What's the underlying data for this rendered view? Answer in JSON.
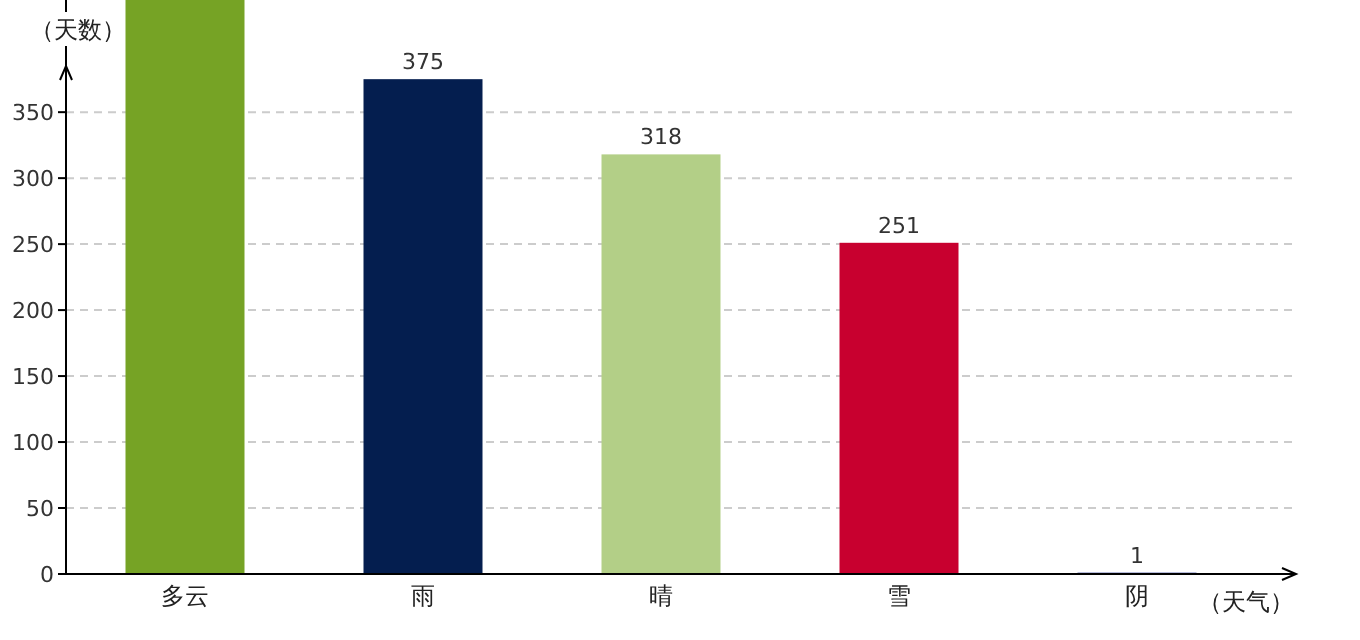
{
  "chart_data": {
    "type": "bar",
    "xlabel": "（天气）",
    "ylabel": "（天数）",
    "categories": [
      "多云",
      "雨",
      "晴",
      "雪",
      "阴"
    ],
    "values": [
      435,
      375,
      318,
      251,
      1
    ],
    "colors": [
      "#76a325",
      "#041e4f",
      "#b3cf87",
      "#c8002f",
      "#1a2a8c"
    ],
    "value_labels": [
      null,
      "375",
      "318",
      "251",
      "1"
    ],
    "ylim": [
      0,
      435
    ],
    "yticks": [
      0,
      50,
      100,
      150,
      200,
      250,
      300,
      350
    ],
    "grid": "y"
  }
}
